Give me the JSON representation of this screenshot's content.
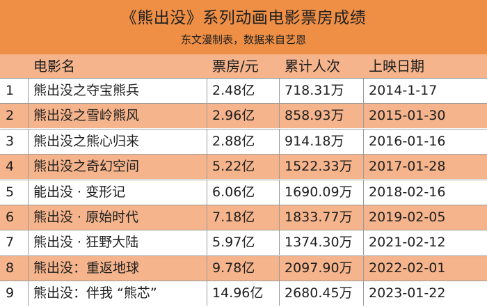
{
  "chart_data": {
    "type": "table",
    "title": "《熊出没》系列动画电影票房成绩",
    "subtitle": "东文漫制表，数据来自艺恩",
    "columns": [
      "",
      "电影名",
      "票房/元",
      "累计人次",
      "上映日期"
    ],
    "rows": [
      [
        "1",
        "熊出没之夺宝熊兵",
        "2.48亿",
        "718.31万",
        "2014-1-17"
      ],
      [
        "2",
        "熊出没之雪岭熊风",
        "2.96亿",
        "858.93万",
        "2015-01-30"
      ],
      [
        "3",
        "熊出没之熊心归来",
        "2.88亿",
        "914.18万",
        "2016-01-16"
      ],
      [
        "4",
        "熊出没之奇幻空间",
        "5.22亿",
        "1522.33万",
        "2017-01-28"
      ],
      [
        "5",
        "能出没 · 变形记",
        "6.06亿",
        "1690.09万",
        "2018-02-16"
      ],
      [
        "6",
        "熊出没 · 原始时代",
        "7.18亿",
        "1833.77万",
        "2019-02-05"
      ],
      [
        "7",
        "熊出没 · 狂野大陆",
        "5.97亿",
        "1374.30万",
        "2021-02-12"
      ],
      [
        "8",
        "熊出没：重返地球",
        "9.78亿",
        "2097.90万",
        "2022-02-01"
      ],
      [
        "9",
        "熊出没：伴我 “熊芯”",
        "14.96亿",
        "2680.45万",
        "2023-01-22"
      ]
    ]
  },
  "colors": {
    "header_bg": "#ef8f45",
    "band_bg": "#f5b48c",
    "plain_bg": "#ffffff"
  }
}
